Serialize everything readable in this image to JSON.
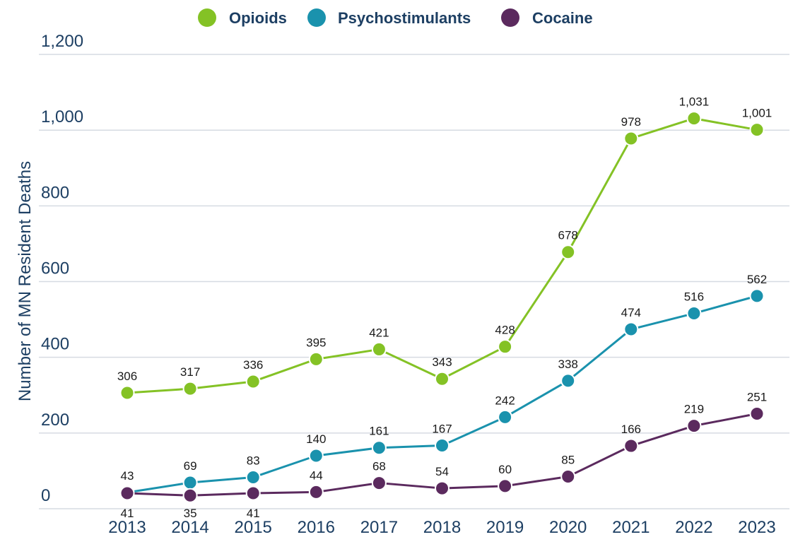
{
  "chart_data": {
    "type": "line",
    "title": "",
    "xlabel": "",
    "ylabel": "Number of MN Resident Deaths",
    "ylim": [
      0,
      1200
    ],
    "yticks": [
      "0",
      "200",
      "400",
      "600",
      "800",
      "1,000",
      "1,200"
    ],
    "ytick_values": [
      0,
      200,
      400,
      600,
      800,
      1000,
      1200
    ],
    "x": [
      "2013",
      "2014",
      "2015",
      "2016",
      "2017",
      "2018",
      "2019",
      "2020",
      "2021",
      "2022",
      "2023"
    ],
    "grid": true,
    "legend_position": "top",
    "series": [
      {
        "name": "Opioids",
        "color": "#84c225",
        "values": [
          306,
          317,
          336,
          395,
          421,
          343,
          428,
          678,
          978,
          1031,
          1001
        ],
        "labels": [
          "306",
          "317",
          "336",
          "395",
          "421",
          "343",
          "428",
          "678",
          "978",
          "1,031",
          "1,001"
        ]
      },
      {
        "name": "Psychostimulants",
        "color": "#1a92ad",
        "values": [
          43,
          69,
          83,
          140,
          161,
          167,
          242,
          338,
          474,
          516,
          562
        ],
        "labels": [
          "43",
          "69",
          "83",
          "140",
          "161",
          "167",
          "242",
          "338",
          "474",
          "516",
          "562"
        ]
      },
      {
        "name": "Cocaine",
        "color": "#5b2a5e",
        "values": [
          41,
          35,
          41,
          44,
          68,
          54,
          60,
          85,
          166,
          219,
          251
        ],
        "labels": [
          "41",
          "35",
          "41",
          "44",
          "68",
          "54",
          "60",
          "85",
          "166",
          "219",
          "251"
        ]
      }
    ]
  }
}
